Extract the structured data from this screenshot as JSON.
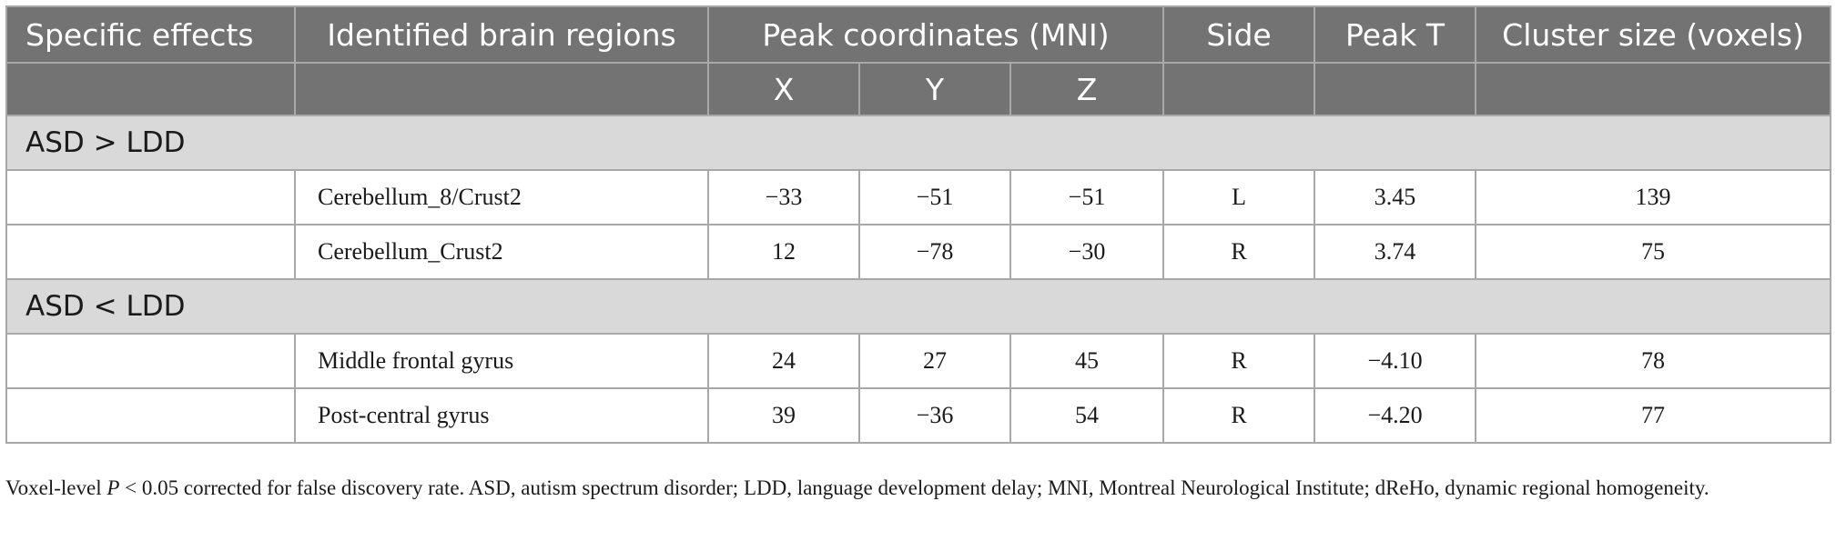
{
  "table": {
    "headers": {
      "specific_effects": "Specific effects",
      "brain_regions": "Identified brain regions",
      "peak_coordinates": "Peak coordinates (MNI)",
      "side": "Side",
      "peak_t": "Peak T",
      "cluster_size": "Cluster size (voxels)",
      "x": "X",
      "y": "Y",
      "z": "Z"
    },
    "groups": [
      {
        "label": "ASD > LDD",
        "rows": [
          {
            "region": "Cerebellum_8/Crust2",
            "x": "−33",
            "y": "−51",
            "z": "−51",
            "side": "L",
            "peak_t": "3.45",
            "cluster": "139"
          },
          {
            "region": "Cerebellum_Crust2",
            "x": "12",
            "y": "−78",
            "z": "−30",
            "side": "R",
            "peak_t": "3.74",
            "cluster": "75"
          }
        ]
      },
      {
        "label": "ASD < LDD",
        "rows": [
          {
            "region": "Middle frontal gyrus",
            "x": "24",
            "y": "27",
            "z": "45",
            "side": "R",
            "peak_t": "−4.10",
            "cluster": "78"
          },
          {
            "region": "Post-central gyrus",
            "x": "39",
            "y": "−36",
            "z": "54",
            "side": "R",
            "peak_t": "−4.20",
            "cluster": "77"
          }
        ]
      }
    ]
  },
  "footnote": {
    "lead": "Voxel-level ",
    "p_symbol": "P",
    "rest": " < 0.05 corrected for false discovery rate. ASD, autism spectrum disorder; LDD, language development delay; MNI, Montreal Neurological Institute; dReHo, dynamic regional homogeneity."
  }
}
